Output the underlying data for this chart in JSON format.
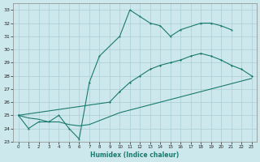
{
  "xlabel": "Humidex (Indice chaleur)",
  "xlim": [
    -0.5,
    23.5
  ],
  "ylim": [
    23,
    33.5
  ],
  "yticks": [
    23,
    24,
    25,
    26,
    27,
    28,
    29,
    30,
    31,
    32,
    33
  ],
  "xticks": [
    0,
    1,
    2,
    3,
    4,
    5,
    6,
    7,
    8,
    9,
    10,
    11,
    12,
    13,
    14,
    15,
    16,
    17,
    18,
    19,
    20,
    21,
    22,
    23
  ],
  "bg_color": "#cde8ec",
  "line_color": "#1a7a6e",
  "grid_color": "#aacdd4",
  "line1_x": [
    0,
    1,
    2,
    3,
    4,
    5,
    6,
    7,
    8,
    10,
    11,
    12,
    13,
    14,
    15,
    16,
    18,
    19,
    20,
    21
  ],
  "line1_y": [
    25.0,
    24.0,
    24.5,
    24.5,
    25.0,
    24.0,
    23.2,
    27.5,
    29.5,
    31.0,
    33.0,
    32.5,
    32.0,
    31.8,
    31.0,
    31.5,
    32.0,
    32.0,
    31.8,
    31.5
  ],
  "line2_x": [
    0,
    9,
    10,
    11,
    12,
    13,
    14,
    15,
    16,
    17,
    18,
    19,
    20,
    21,
    22,
    23
  ],
  "line2_y": [
    25.0,
    26.0,
    26.8,
    27.5,
    28.0,
    28.5,
    28.8,
    29.0,
    29.2,
    29.5,
    29.7,
    29.5,
    29.2,
    28.8,
    28.5,
    28.0
  ],
  "line3_x": [
    0,
    1,
    2,
    3,
    4,
    5,
    6,
    7,
    8,
    9,
    10,
    11,
    12,
    13,
    14,
    15,
    16,
    17,
    18,
    19,
    20,
    21,
    22,
    23
  ],
  "line3_y": [
    25.0,
    24.8,
    24.7,
    24.5,
    24.5,
    24.3,
    24.2,
    24.3,
    24.6,
    24.9,
    25.2,
    25.4,
    25.6,
    25.8,
    26.0,
    26.2,
    26.4,
    26.6,
    26.8,
    27.0,
    27.2,
    27.4,
    27.6,
    27.8
  ]
}
